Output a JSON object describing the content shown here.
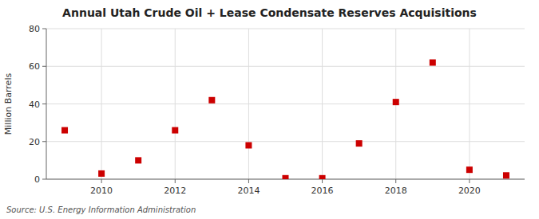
{
  "chart_data": {
    "type": "scatter",
    "title": "Annual Utah Crude Oil + Lease Condensate Reserves Acquisitions",
    "ylabel": "Million Barrels",
    "source": "Source: U.S. Energy Information Administration",
    "x": [
      2009,
      2010,
      2011,
      2012,
      2013,
      2014,
      2015,
      2016,
      2017,
      2018,
      2019,
      2020,
      2021
    ],
    "values": [
      26.0,
      3.0,
      10.0,
      26.0,
      42.0,
      18.0,
      0.5,
      0.5,
      19.0,
      41.0,
      62.0,
      5.0,
      2.0
    ],
    "color": "#cc0000",
    "marker": "square",
    "xlim": [
      2008.5,
      2021.5
    ],
    "ylim": [
      0,
      80
    ],
    "xticks": [
      2010,
      2012,
      2014,
      2016,
      2018,
      2020
    ],
    "yticks": [
      0,
      20,
      40,
      60,
      80
    ],
    "grid": true
  }
}
